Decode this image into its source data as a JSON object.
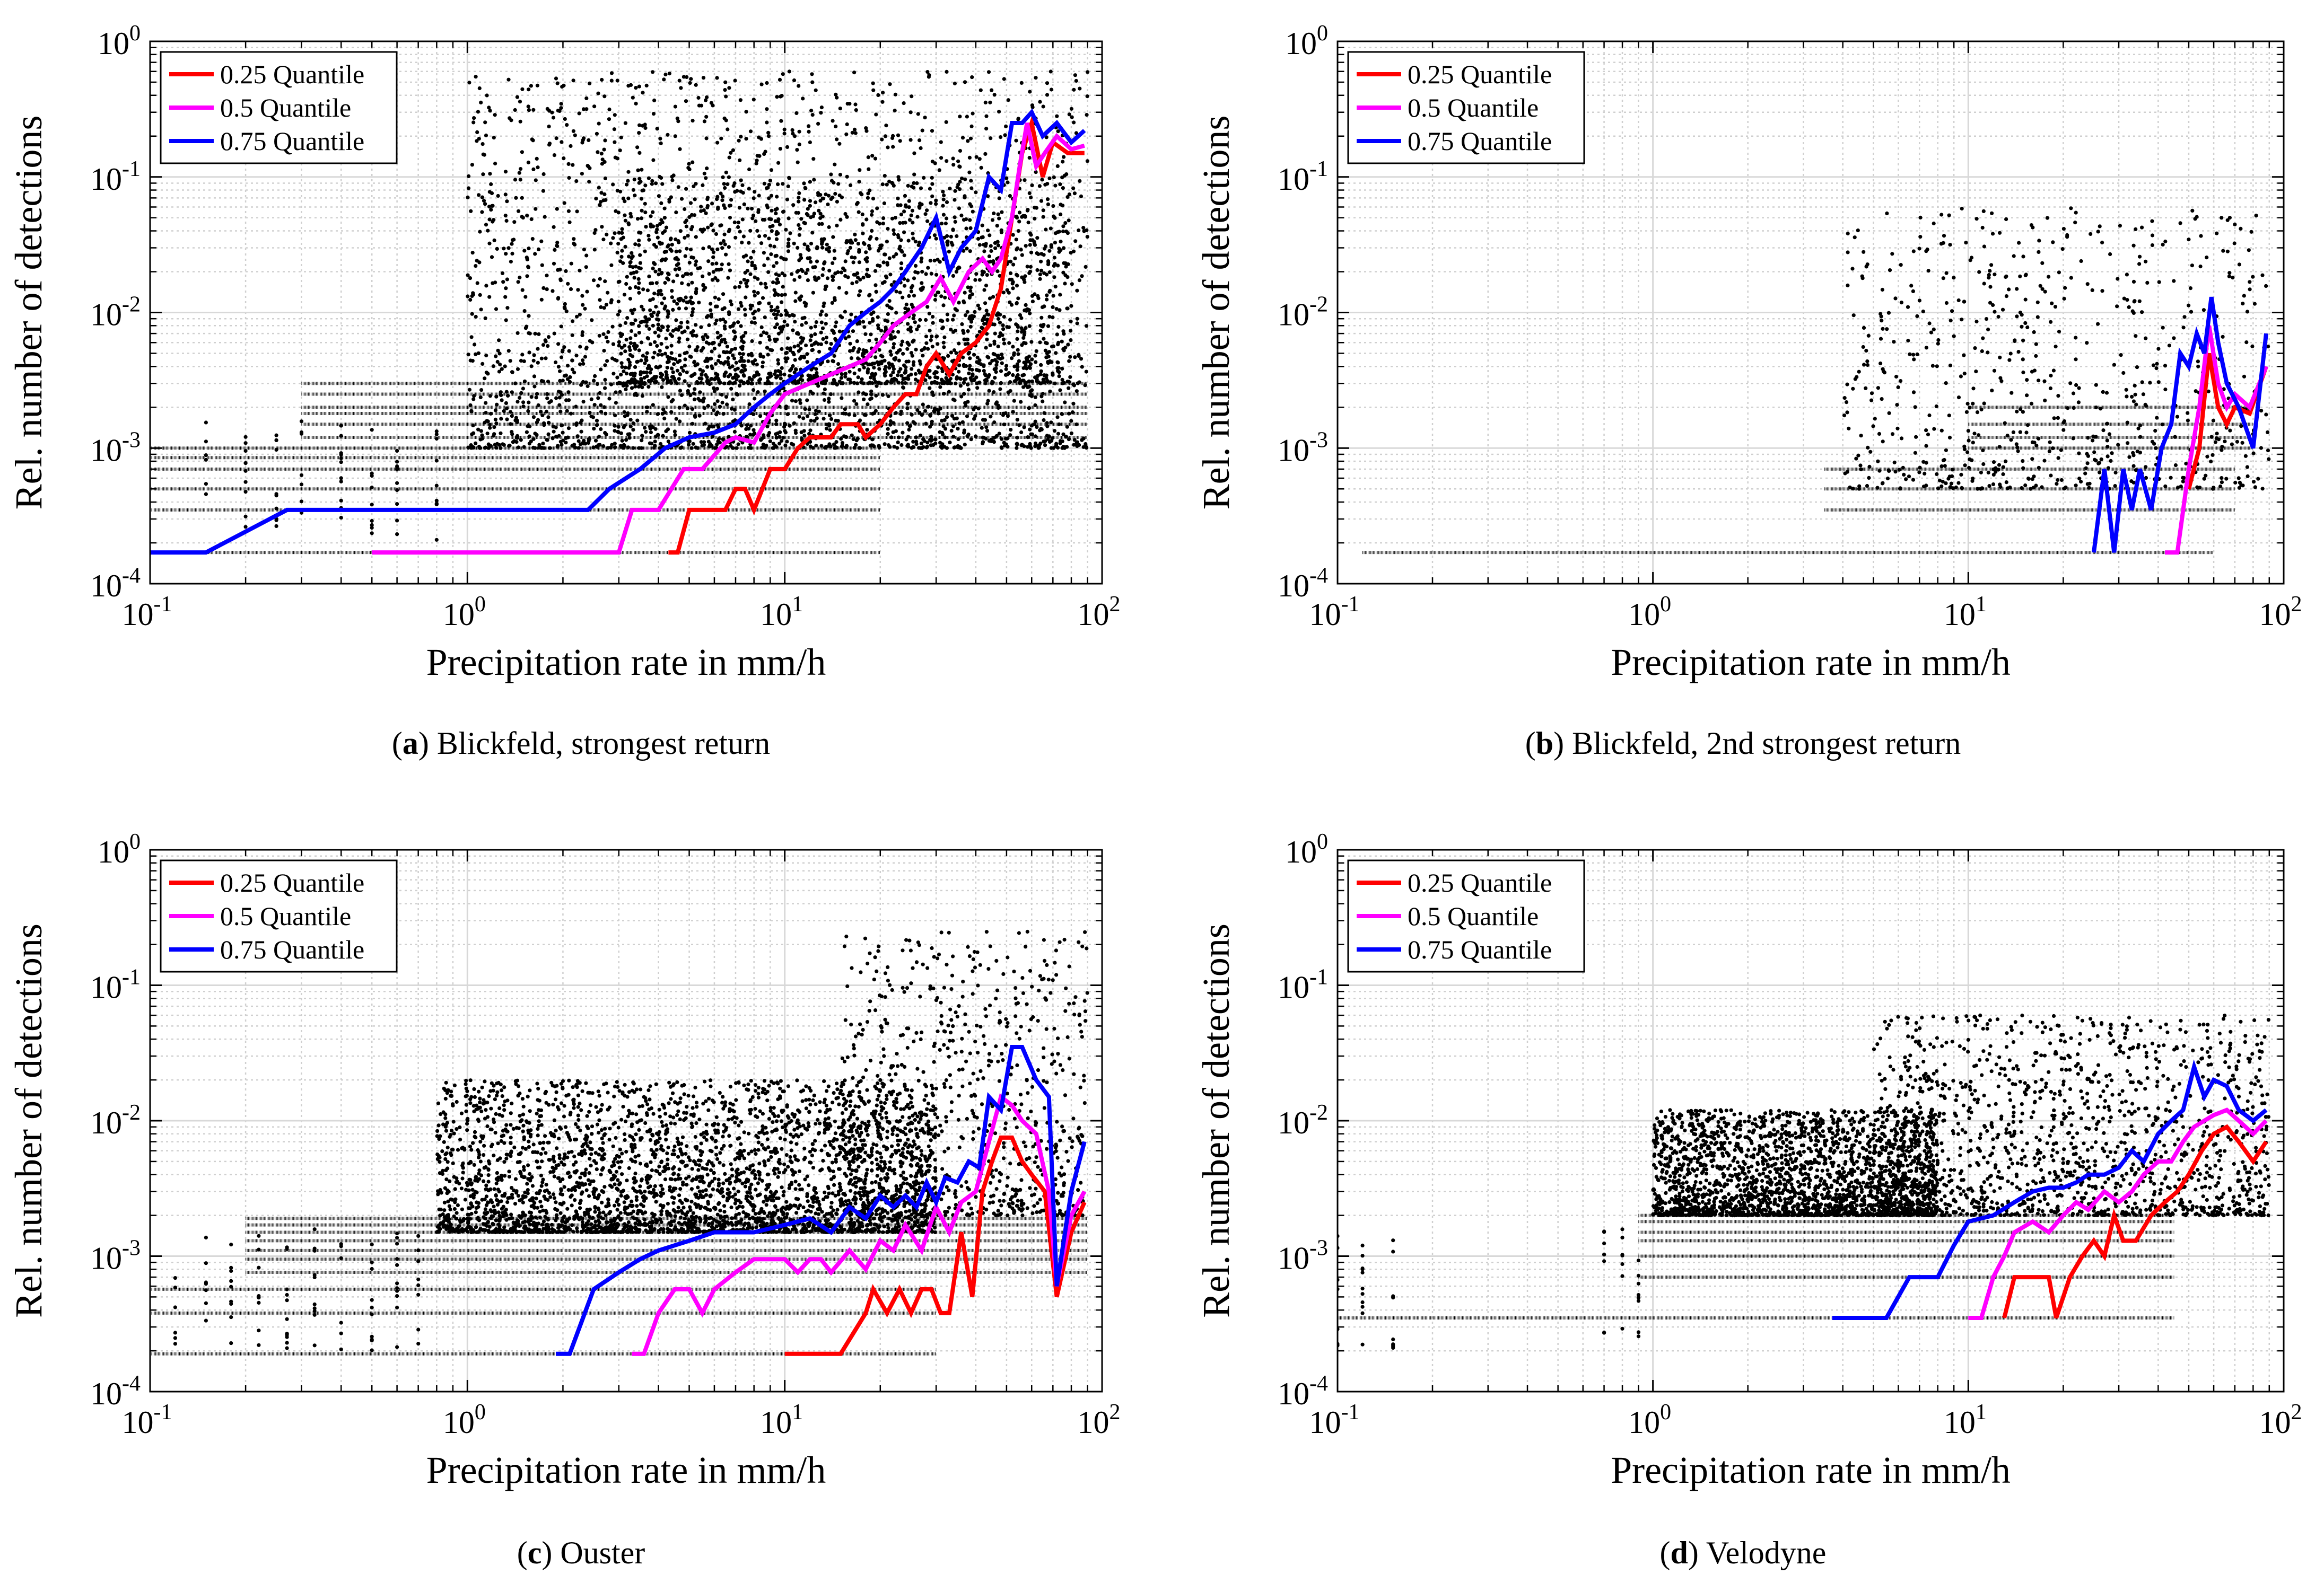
{
  "colors": {
    "q25": "#ff0000",
    "q50": "#ff00ff",
    "q75": "#0000ff",
    "scatter": "#000000",
    "grid": "#cfcfcf"
  },
  "chart_data": [
    {
      "type": "scatter",
      "panel": "a",
      "caption_label": "a",
      "caption_text": "Blickfeld, strongest return",
      "xlabel": "Precipitation rate in mm/h",
      "ylabel": "Rel. number of detections",
      "xscale": "log",
      "yscale": "log",
      "xlim": [
        0.1,
        100
      ],
      "ylim": [
        0.0001,
        1
      ],
      "xticks": [
        "10",
        "10",
        "10",
        "10"
      ],
      "xtick_exp": [
        "-1",
        "0",
        "1",
        "2"
      ],
      "yticks": [
        "10",
        "10",
        "10",
        "10",
        "10"
      ],
      "ytick_exp": [
        "-4",
        "-3",
        "-2",
        "-1",
        "0"
      ],
      "legend_position": "top-left",
      "series": [
        {
          "name": "0.25 Quantile",
          "color": "#ff0000",
          "x": [
            4.3,
            4.6,
            5.0,
            6.5,
            7.0,
            7.5,
            8.0,
            9.0,
            10.0,
            11.0,
            12.0,
            14.0,
            15.0,
            17.0,
            18.0,
            20.0,
            22.0,
            24.0,
            26.0,
            28.0,
            30.0,
            33.0,
            36.0,
            40.0,
            44.0,
            48.0,
            52.0,
            56.0,
            60.0,
            65.0,
            70.0,
            78.0,
            88.0
          ],
          "y": [
            0.00017,
            0.00017,
            0.00035,
            0.00035,
            0.0005,
            0.0005,
            0.00035,
            0.0007,
            0.0007,
            0.001,
            0.0012,
            0.0012,
            0.0015,
            0.0015,
            0.0012,
            0.0015,
            0.002,
            0.0025,
            0.0025,
            0.004,
            0.005,
            0.0035,
            0.005,
            0.006,
            0.008,
            0.015,
            0.05,
            0.15,
            0.25,
            0.1,
            0.18,
            0.15,
            0.15
          ]
        },
        {
          "name": "0.5 Quantile",
          "color": "#ff00ff",
          "x": [
            0.5,
            3.0,
            3.3,
            4.0,
            4.8,
            5.5,
            6.5,
            7.0,
            8.0,
            9.0,
            10.0,
            12.0,
            14.0,
            16.0,
            18.0,
            20.0,
            22.0,
            25.0,
            28.0,
            31.0,
            34.0,
            38.0,
            42.0,
            45.0,
            48.0,
            52.0,
            55.0,
            58.0,
            62.0,
            66.0,
            72.0,
            80.0,
            88.0
          ],
          "y": [
            0.00017,
            0.00017,
            0.00035,
            0.00035,
            0.0007,
            0.0007,
            0.0011,
            0.0012,
            0.0011,
            0.0018,
            0.0025,
            0.003,
            0.0035,
            0.004,
            0.0045,
            0.006,
            0.008,
            0.01,
            0.012,
            0.018,
            0.012,
            0.02,
            0.025,
            0.02,
            0.025,
            0.05,
            0.12,
            0.25,
            0.12,
            0.15,
            0.2,
            0.16,
            0.17
          ]
        },
        {
          "name": "0.75 Quantile",
          "color": "#0000ff",
          "x": [
            0.1,
            0.15,
            0.27,
            0.5,
            1.0,
            1.5,
            2.4,
            2.8,
            3.5,
            4.2,
            5.0,
            6.0,
            7.0,
            8.0,
            9.0,
            10.0,
            12.0,
            14.0,
            16.0,
            18.0,
            20.0,
            22.0,
            24.0,
            27.0,
            30.0,
            33.0,
            36.0,
            40.0,
            44.0,
            48.0,
            52.0,
            56.0,
            60.0,
            65.0,
            72.0,
            80.0,
            88.0
          ],
          "y": [
            0.00017,
            0.00017,
            0.00035,
            0.00035,
            0.00035,
            0.00035,
            0.00035,
            0.0005,
            0.0007,
            0.001,
            0.0012,
            0.0013,
            0.0015,
            0.002,
            0.0025,
            0.003,
            0.004,
            0.005,
            0.008,
            0.01,
            0.012,
            0.015,
            0.02,
            0.03,
            0.05,
            0.02,
            0.03,
            0.04,
            0.1,
            0.08,
            0.25,
            0.25,
            0.3,
            0.2,
            0.25,
            0.18,
            0.22
          ]
        }
      ],
      "scatter_bands": [
        {
          "xmin": 0.1,
          "xmax": 20,
          "ys": [
            0.00017,
            0.00035,
            0.0005,
            0.0007,
            0.00085,
            0.001
          ]
        },
        {
          "xmin": 0.3,
          "xmax": 90,
          "ys": [
            0.0012,
            0.0015,
            0.0018,
            0.002,
            0.0025,
            0.003
          ]
        }
      ],
      "scatter_cloud": [
        {
          "xmin": 1.0,
          "xmax": 90,
          "ymin": 0.001,
          "ymax": 0.6,
          "count": 2600
        },
        {
          "xmin": 3.0,
          "xmax": 80,
          "ymin": 0.003,
          "ymax": 0.1,
          "count": 1600
        }
      ],
      "scatter_columns": [
        0.15,
        0.2,
        0.25,
        0.3,
        0.4,
        0.5,
        0.6,
        0.8
      ]
    },
    {
      "type": "scatter",
      "panel": "b",
      "caption_label": "b",
      "caption_text": "Blickfeld, 2nd strongest return",
      "xlabel": "Precipitation rate in mm/h",
      "ylabel": "Rel. number of detections",
      "xscale": "log",
      "yscale": "log",
      "xlim": [
        0.1,
        100
      ],
      "ylim": [
        0.0001,
        1
      ],
      "xticks": [
        "10",
        "10",
        "10",
        "10"
      ],
      "xtick_exp": [
        "-1",
        "0",
        "1",
        "2"
      ],
      "yticks": [
        "10",
        "10",
        "10",
        "10",
        "10"
      ],
      "ytick_exp": [
        "-4",
        "-3",
        "-2",
        "-1",
        "0"
      ],
      "legend_position": "top-left",
      "series": [
        {
          "name": "0.25 Quantile",
          "color": "#ff0000",
          "x": [
            50,
            54,
            58,
            62,
            66,
            70,
            78,
            88
          ],
          "y": [
            0.0005,
            0.001,
            0.005,
            0.002,
            0.0015,
            0.002,
            0.0018,
            0.004
          ]
        },
        {
          "name": "0.5 Quantile",
          "color": "#ff00ff",
          "x": [
            42,
            46,
            50,
            54,
            58,
            62,
            66,
            70,
            78,
            88
          ],
          "y": [
            0.00017,
            0.00017,
            0.0007,
            0.002,
            0.008,
            0.003,
            0.002,
            0.0025,
            0.002,
            0.004
          ]
        },
        {
          "name": "0.75 Quantile",
          "color": "#0000ff",
          "x": [
            25,
            27,
            29,
            31,
            33,
            35,
            38,
            41,
            44,
            47,
            50,
            53,
            56,
            59,
            62,
            66,
            72,
            80,
            88
          ],
          "y": [
            0.00017,
            0.0007,
            0.00017,
            0.0007,
            0.00035,
            0.0007,
            0.00035,
            0.001,
            0.0015,
            0.005,
            0.004,
            0.007,
            0.005,
            0.013,
            0.006,
            0.003,
            0.002,
            0.001,
            0.007
          ]
        }
      ],
      "scatter_bands": [
        {
          "xmin": 0.12,
          "xmax": 60,
          "ys": [
            0.00017
          ]
        },
        {
          "xmin": 3.5,
          "xmax": 70,
          "ys": [
            0.00035,
            0.0005,
            0.0007
          ]
        },
        {
          "xmin": 10,
          "xmax": 80,
          "ys": [
            0.001,
            0.0012,
            0.0015,
            0.002
          ]
        }
      ],
      "scatter_cloud": [
        {
          "xmin": 4.0,
          "xmax": 90,
          "ymin": 0.0005,
          "ymax": 0.06,
          "count": 700
        }
      ],
      "scatter_columns": []
    },
    {
      "type": "scatter",
      "panel": "c",
      "caption_label": "c",
      "caption_text": "Ouster",
      "xlabel": "Precipitation rate in mm/h",
      "ylabel": "Rel. number of detections",
      "xscale": "log",
      "yscale": "log",
      "xlim": [
        0.1,
        100
      ],
      "ylim": [
        0.0001,
        1
      ],
      "xticks": [
        "10",
        "10",
        "10",
        "10"
      ],
      "xtick_exp": [
        "-1",
        "0",
        "1",
        "2"
      ],
      "yticks": [
        "10",
        "10",
        "10",
        "10",
        "10"
      ],
      "ytick_exp": [
        "-4",
        "-3",
        "-2",
        "-1",
        "0"
      ],
      "legend_position": "top-left",
      "series": [
        {
          "name": "0.25 Quantile",
          "color": "#ff0000",
          "x": [
            10,
            15,
            18,
            19,
            21,
            23,
            25,
            27,
            29,
            31,
            33,
            36,
            39,
            42,
            45,
            48,
            52,
            56,
            60,
            66,
            72,
            80,
            88
          ],
          "y": [
            0.00019,
            0.00019,
            0.00038,
            0.00057,
            0.00038,
            0.00057,
            0.00038,
            0.00057,
            0.00057,
            0.00038,
            0.00038,
            0.0015,
            0.0005,
            0.003,
            0.005,
            0.0075,
            0.0075,
            0.005,
            0.004,
            0.003,
            0.0005,
            0.0015,
            0.0025
          ]
        },
        {
          "name": "0.5 Quantile",
          "color": "#ff00ff",
          "x": [
            3.3,
            3.6,
            4.0,
            4.5,
            5.0,
            5.5,
            6.0,
            7.0,
            8.0,
            9.0,
            10.0,
            11.0,
            12.0,
            13.0,
            14.0,
            16.0,
            18.0,
            20.0,
            22.0,
            24.0,
            27.0,
            30.0,
            33.0,
            36.0,
            40.0,
            44.0,
            48.0,
            52.0,
            56.0,
            62.0,
            68.0,
            72.0,
            80.0,
            88.0
          ],
          "y": [
            0.00019,
            0.00019,
            0.00038,
            0.00057,
            0.00057,
            0.00038,
            0.00057,
            0.00076,
            0.00095,
            0.00095,
            0.00095,
            0.00076,
            0.00095,
            0.00095,
            0.00076,
            0.0011,
            0.0008,
            0.0013,
            0.0011,
            0.0017,
            0.0011,
            0.0023,
            0.0015,
            0.0025,
            0.003,
            0.007,
            0.015,
            0.013,
            0.01,
            0.008,
            0.003,
            0.0006,
            0.002,
            0.003
          ]
        },
        {
          "name": "0.75 Quantile",
          "color": "#0000ff",
          "x": [
            1.9,
            2.1,
            2.5,
            3.0,
            3.5,
            4.0,
            5.0,
            6.0,
            8.0,
            10.0,
            12.0,
            14.0,
            16.0,
            18.0,
            20.0,
            22.0,
            24.0,
            26.0,
            28.0,
            30.0,
            32.0,
            35.0,
            38.0,
            41.0,
            44.0,
            48.0,
            52.0,
            56.0,
            62.0,
            68.0,
            72.0,
            80.0,
            88.0
          ],
          "y": [
            0.00019,
            0.00019,
            0.00057,
            0.00076,
            0.00095,
            0.0011,
            0.0013,
            0.0015,
            0.0015,
            0.0017,
            0.0019,
            0.0015,
            0.0023,
            0.0019,
            0.0028,
            0.0023,
            0.0028,
            0.0023,
            0.0035,
            0.0025,
            0.0038,
            0.0035,
            0.005,
            0.0045,
            0.015,
            0.012,
            0.035,
            0.035,
            0.02,
            0.015,
            0.0006,
            0.003,
            0.007
          ]
        }
      ],
      "scatter_bands": [
        {
          "xmin": 0.1,
          "xmax": 30,
          "ys": [
            0.00019,
            0.00038,
            0.00057
          ]
        },
        {
          "xmin": 0.2,
          "xmax": 90,
          "ys": [
            0.00076,
            0.00095,
            0.0011,
            0.0013,
            0.0015,
            0.0017,
            0.0019
          ]
        }
      ],
      "scatter_cloud": [
        {
          "xmin": 0.8,
          "xmax": 30,
          "ymin": 0.0015,
          "ymax": 0.02,
          "count": 3200
        },
        {
          "xmin": 15,
          "xmax": 90,
          "ymin": 0.002,
          "ymax": 0.25,
          "count": 800
        }
      ],
      "scatter_columns": [
        0.12,
        0.15,
        0.18,
        0.22,
        0.27,
        0.33,
        0.4,
        0.5,
        0.6,
        0.7
      ]
    },
    {
      "type": "scatter",
      "panel": "d",
      "caption_label": "d",
      "caption_text": "Velodyne",
      "xlabel": "Precipitation rate in mm/h",
      "ylabel": "Rel. number of detections",
      "xscale": "log",
      "yscale": "log",
      "xlim": [
        0.1,
        100
      ],
      "ylim": [
        0.0001,
        1
      ],
      "xticks": [
        "10",
        "10",
        "10",
        "10"
      ],
      "xtick_exp": [
        "-1",
        "0",
        "1",
        "2"
      ],
      "yticks": [
        "10",
        "10",
        "10",
        "10",
        "10"
      ],
      "ytick_exp": [
        "-4",
        "-3",
        "-2",
        "-1",
        "0"
      ],
      "legend_position": "top-left",
      "series": [
        {
          "name": "0.25 Quantile",
          "color": "#ff0000",
          "x": [
            13,
            14,
            18,
            19,
            21,
            23,
            25,
            27,
            29,
            31,
            34,
            38,
            42,
            46,
            50,
            55,
            60,
            66,
            72,
            80,
            88
          ],
          "y": [
            0.00035,
            0.0007,
            0.0007,
            0.00035,
            0.0007,
            0.001,
            0.0013,
            0.001,
            0.002,
            0.0013,
            0.0013,
            0.002,
            0.0025,
            0.003,
            0.004,
            0.006,
            0.008,
            0.009,
            0.007,
            0.005,
            0.007
          ]
        },
        {
          "name": "0.5 Quantile",
          "color": "#ff00ff",
          "x": [
            10,
            11,
            12,
            13,
            14,
            16,
            18,
            20,
            22,
            24,
            27,
            30,
            33,
            36,
            40,
            44,
            48,
            52,
            56,
            60,
            66,
            72,
            80,
            88
          ],
          "y": [
            0.00035,
            0.00035,
            0.0007,
            0.001,
            0.0015,
            0.0018,
            0.0015,
            0.002,
            0.0025,
            0.0022,
            0.003,
            0.0025,
            0.003,
            0.004,
            0.005,
            0.005,
            0.007,
            0.009,
            0.01,
            0.011,
            0.012,
            0.01,
            0.008,
            0.01
          ]
        },
        {
          "name": "0.75 Quantile",
          "color": "#0000ff",
          "x": [
            3.7,
            5.5,
            6.5,
            8.0,
            9.0,
            10.0,
            12.0,
            14.0,
            16.0,
            18.0,
            20.0,
            22.0,
            24.0,
            27.0,
            30.0,
            33.0,
            36.0,
            40.0,
            44.0,
            48.0,
            52.0,
            56.0,
            60.0,
            66.0,
            72.0,
            80.0,
            88.0
          ],
          "y": [
            0.00035,
            0.00035,
            0.0007,
            0.0007,
            0.0012,
            0.0018,
            0.002,
            0.0025,
            0.003,
            0.0032,
            0.0032,
            0.0035,
            0.004,
            0.004,
            0.0045,
            0.006,
            0.005,
            0.008,
            0.01,
            0.012,
            0.025,
            0.015,
            0.02,
            0.018,
            0.012,
            0.01,
            0.012
          ]
        }
      ],
      "scatter_bands": [
        {
          "xmin": 0.1,
          "xmax": 45,
          "ys": [
            0.00035
          ]
        },
        {
          "xmin": 0.9,
          "xmax": 45,
          "ys": [
            0.0007,
            0.001,
            0.0013,
            0.0015,
            0.0018,
            0.002
          ]
        }
      ],
      "scatter_cloud": [
        {
          "xmin": 1.0,
          "xmax": 8,
          "ymin": 0.002,
          "ymax": 0.012,
          "count": 2200
        },
        {
          "xmin": 5.0,
          "xmax": 90,
          "ymin": 0.002,
          "ymax": 0.06,
          "count": 1400
        }
      ],
      "scatter_columns": [
        0.1,
        0.12,
        0.15,
        0.7,
        0.8,
        0.9
      ]
    }
  ]
}
